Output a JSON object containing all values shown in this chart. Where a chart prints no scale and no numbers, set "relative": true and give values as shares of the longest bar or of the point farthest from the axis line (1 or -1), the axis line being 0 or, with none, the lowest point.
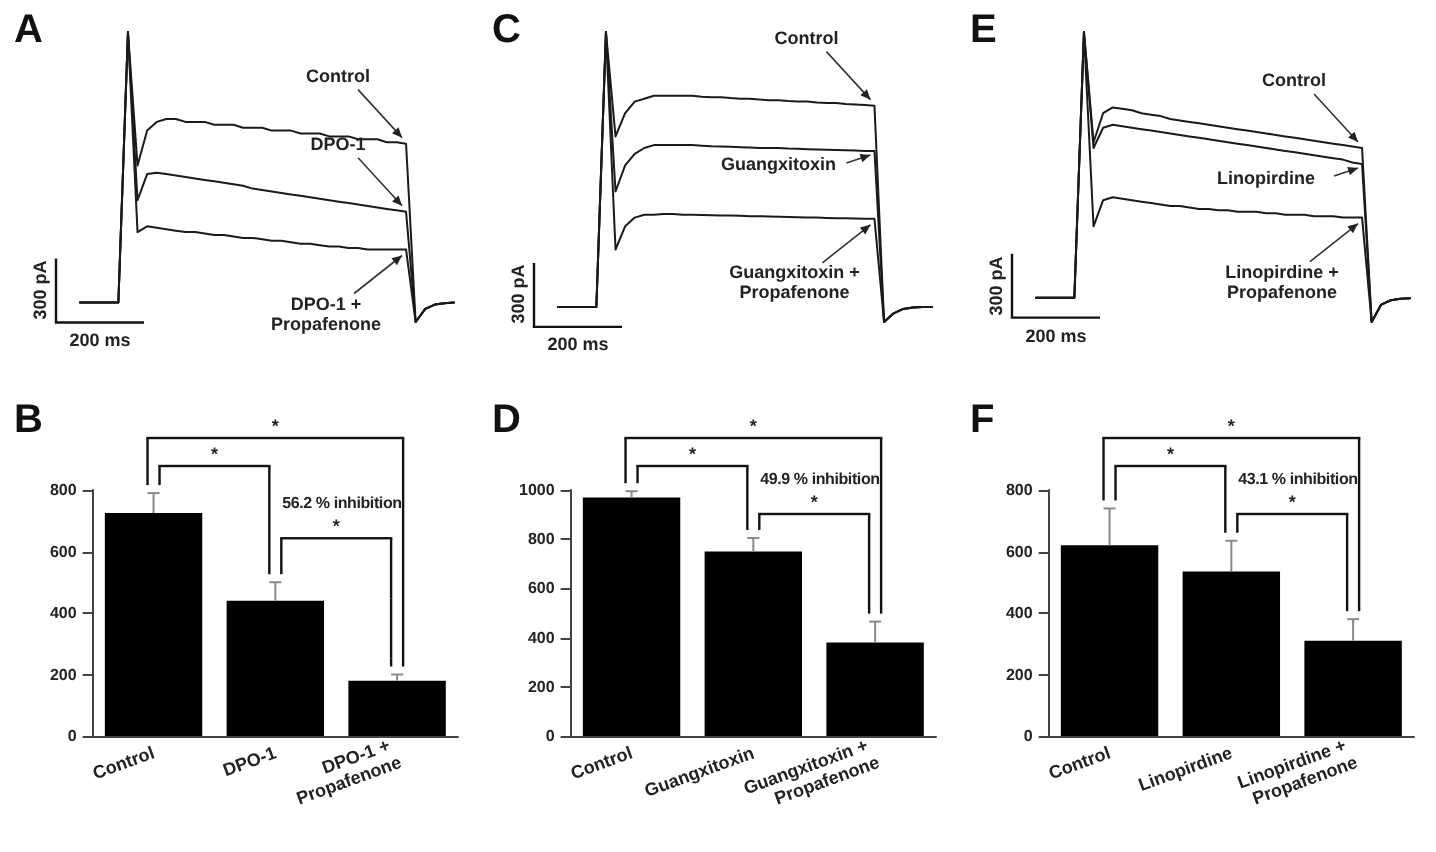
{
  "chart_data": [
    {
      "type": "line",
      "title": "A",
      "relative": true,
      "tick_labels": false,
      "marker": "none",
      "line_style": "solid",
      "categories": [
        null,
        null,
        null,
        null,
        null,
        null,
        null,
        null,
        null,
        null,
        null,
        null,
        null,
        null,
        null,
        null,
        null,
        null,
        null,
        null,
        null,
        null,
        null,
        null,
        null,
        null,
        null,
        null,
        null,
        null,
        null,
        null,
        null,
        null,
        null,
        null,
        null,
        null,
        null,
        null
      ],
      "series": [
        {
          "name": "Control",
          "color": "#1a1a1a",
          "values": [
            0.067,
            0.067,
            0.067,
            0.067,
            0.067,
            1,
            0.54,
            0.66,
            0.69,
            0.7,
            0.7,
            0.69,
            0.69,
            0.69,
            0.68,
            0.68,
            0.68,
            0.67,
            0.67,
            0.67,
            0.66,
            0.66,
            0.66,
            0.65,
            0.65,
            0.65,
            0.64,
            0.64,
            0.64,
            0.63,
            0.63,
            0.63,
            0.62,
            0.62,
            0.615,
            0,
            0.045,
            0.06,
            0.065,
            0.067
          ]
        },
        {
          "name": "DPO-1",
          "color": "#1a1a1a",
          "values": [
            0.067,
            0.067,
            0.067,
            0.067,
            0.067,
            1,
            0.42,
            0.51,
            0.515,
            0.51,
            0.505,
            0.5,
            0.495,
            0.49,
            0.485,
            0.48,
            0.475,
            0.47,
            0.46,
            0.455,
            0.45,
            0.445,
            0.44,
            0.435,
            0.43,
            0.425,
            0.42,
            0.415,
            0.41,
            0.405,
            0.4,
            0.395,
            0.39,
            0.385,
            0.38,
            0,
            0.045,
            0.06,
            0.065,
            0.067
          ]
        },
        {
          "name": "DPO-1 + Propafenone",
          "color": "#1a1a1a",
          "values": [
            0.067,
            0.067,
            0.067,
            0.067,
            0.067,
            1,
            0.31,
            0.33,
            0.325,
            0.32,
            0.315,
            0.31,
            0.31,
            0.305,
            0.3,
            0.3,
            0.295,
            0.29,
            0.29,
            0.285,
            0.28,
            0.28,
            0.275,
            0.27,
            0.27,
            0.265,
            0.26,
            0.26,
            0.255,
            0.255,
            0.25,
            0.25,
            0.25,
            0.25,
            0.25,
            0,
            0.045,
            0.06,
            0.065,
            0.067
          ]
        }
      ],
      "annotations": [
        "200 ms",
        "300 pA"
      ]
    },
    {
      "type": "line",
      "title": "C",
      "relative": true,
      "tick_labels": false,
      "marker": "none",
      "line_style": "solid",
      "categories": [
        null,
        null,
        null,
        null,
        null,
        null,
        null,
        null,
        null,
        null,
        null,
        null,
        null,
        null,
        null,
        null,
        null,
        null,
        null,
        null,
        null,
        null,
        null,
        null,
        null,
        null,
        null,
        null,
        null,
        null,
        null,
        null,
        null,
        null,
        null,
        null,
        null,
        null,
        null,
        null
      ],
      "series": [
        {
          "name": "Control",
          "color": "#1a1a1a",
          "values": [
            0.052,
            0.052,
            0.052,
            0.052,
            0.052,
            1,
            0.64,
            0.72,
            0.76,
            0.77,
            0.78,
            0.78,
            0.78,
            0.78,
            0.78,
            0.777,
            0.775,
            0.775,
            0.772,
            0.77,
            0.77,
            0.767,
            0.765,
            0.765,
            0.762,
            0.76,
            0.76,
            0.757,
            0.755,
            0.755,
            0.752,
            0.75,
            0.748,
            0.746,
            0,
            0.03,
            0.045,
            0.05,
            0.052,
            0.052
          ]
        },
        {
          "name": "Guangxitoxin",
          "color": "#1a1a1a",
          "values": [
            0.052,
            0.052,
            0.052,
            0.052,
            0.052,
            1,
            0.45,
            0.54,
            0.58,
            0.6,
            0.61,
            0.61,
            0.61,
            0.61,
            0.61,
            0.608,
            0.606,
            0.605,
            0.604,
            0.603,
            0.602,
            0.6,
            0.6,
            0.6,
            0.598,
            0.597,
            0.596,
            0.595,
            0.594,
            0.593,
            0.592,
            0.591,
            0.59,
            0.59,
            0,
            0.03,
            0.045,
            0.05,
            0.052,
            0.052
          ]
        },
        {
          "name": "Guangxitoxin + Propafenone",
          "color": "#1a1a1a",
          "values": [
            0.052,
            0.052,
            0.052,
            0.052,
            0.052,
            1,
            0.25,
            0.33,
            0.36,
            0.37,
            0.37,
            0.372,
            0.372,
            0.37,
            0.37,
            0.369,
            0.368,
            0.367,
            0.367,
            0.366,
            0.365,
            0.365,
            0.364,
            0.363,
            0.362,
            0.361,
            0.36,
            0.36,
            0.359,
            0.358,
            0.358,
            0.357,
            0.356,
            0.356,
            0,
            0.03,
            0.045,
            0.05,
            0.052,
            0.052
          ]
        }
      ],
      "annotations": [
        "200 ms",
        "300 pA"
      ]
    },
    {
      "type": "line",
      "title": "E",
      "relative": true,
      "tick_labels": false,
      "marker": "none",
      "line_style": "solid",
      "categories": [
        null,
        null,
        null,
        null,
        null,
        null,
        null,
        null,
        null,
        null,
        null,
        null,
        null,
        null,
        null,
        null,
        null,
        null,
        null,
        null,
        null,
        null,
        null,
        null,
        null,
        null,
        null,
        null,
        null,
        null,
        null,
        null,
        null,
        null,
        null,
        null,
        null,
        null,
        null,
        null
      ],
      "series": [
        {
          "name": "Control",
          "color": "#1a1a1a",
          "values": [
            0.084,
            0.084,
            0.084,
            0.084,
            0.084,
            1,
            0.62,
            0.72,
            0.74,
            0.735,
            0.73,
            0.72,
            0.715,
            0.71,
            0.7,
            0.695,
            0.69,
            0.685,
            0.68,
            0.675,
            0.67,
            0.665,
            0.66,
            0.655,
            0.65,
            0.645,
            0.64,
            0.635,
            0.63,
            0.625,
            0.62,
            0.615,
            0.61,
            0.605,
            0.6,
            0,
            0.06,
            0.075,
            0.08,
            0.082
          ]
        },
        {
          "name": "Linopirdine",
          "color": "#1a1a1a",
          "values": [
            0.084,
            0.084,
            0.084,
            0.084,
            0.084,
            1,
            0.6,
            0.67,
            0.68,
            0.675,
            0.67,
            0.665,
            0.66,
            0.655,
            0.65,
            0.645,
            0.64,
            0.635,
            0.63,
            0.625,
            0.62,
            0.615,
            0.61,
            0.605,
            0.6,
            0.595,
            0.59,
            0.585,
            0.58,
            0.575,
            0.57,
            0.565,
            0.56,
            0.55,
            0.545,
            0,
            0.06,
            0.075,
            0.08,
            0.082
          ]
        },
        {
          "name": "Linopirdine + Propafenone",
          "color": "#1a1a1a",
          "values": [
            0.084,
            0.084,
            0.084,
            0.084,
            0.084,
            1,
            0.33,
            0.42,
            0.43,
            0.425,
            0.42,
            0.415,
            0.41,
            0.405,
            0.4,
            0.4,
            0.395,
            0.39,
            0.39,
            0.385,
            0.385,
            0.38,
            0.38,
            0.38,
            0.375,
            0.375,
            0.37,
            0.37,
            0.37,
            0.365,
            0.365,
            0.365,
            0.36,
            0.36,
            0.36,
            0,
            0.06,
            0.075,
            0.08,
            0.082
          ]
        }
      ],
      "annotations": [
        "200 ms",
        "300 pA"
      ]
    },
    {
      "type": "bar",
      "title": "B",
      "categories": [
        "Control",
        "DPO-1",
        "DPO-1 + Propafenone"
      ],
      "values": [
        725,
        440,
        180
      ],
      "color": "#000000",
      "errors": [
        [
          725,
          790
        ],
        [
          440,
          500
        ],
        [
          180,
          200
        ]
      ],
      "ylim": [
        0,
        800
      ],
      "yticks": [
        0,
        200,
        400,
        600,
        800
      ],
      "annotations": [
        "*",
        "*",
        "*",
        "56.2 % inhibition"
      ]
    },
    {
      "type": "bar",
      "title": "D",
      "categories": [
        "Control",
        "Guangxitoxin",
        "Guangxitoxin + Propafenone"
      ],
      "values": [
        970,
        750,
        380
      ],
      "color": "#000000",
      "errors": [
        [
          970,
          995
        ],
        [
          750,
          805
        ],
        [
          380,
          465
        ]
      ],
      "ylim": [
        0,
        1000
      ],
      "yticks": [
        0,
        200,
        400,
        600,
        800,
        1000
      ],
      "annotations": [
        "*",
        "*",
        "*",
        "49.9 % inhibition"
      ]
    },
    {
      "type": "bar",
      "title": "F",
      "categories": [
        "Control",
        "Linopirdine",
        "Linopirdine + Propafenone"
      ],
      "values": [
        620,
        535,
        310
      ],
      "color": "#000000",
      "errors": [
        [
          620,
          740
        ],
        [
          535,
          635
        ],
        [
          310,
          380
        ]
      ],
      "ylim": [
        0,
        800
      ],
      "yticks": [
        0,
        200,
        400,
        600,
        800
      ],
      "annotations": [
        "*",
        "*",
        "*",
        "43.1 % inhibition"
      ]
    }
  ]
}
